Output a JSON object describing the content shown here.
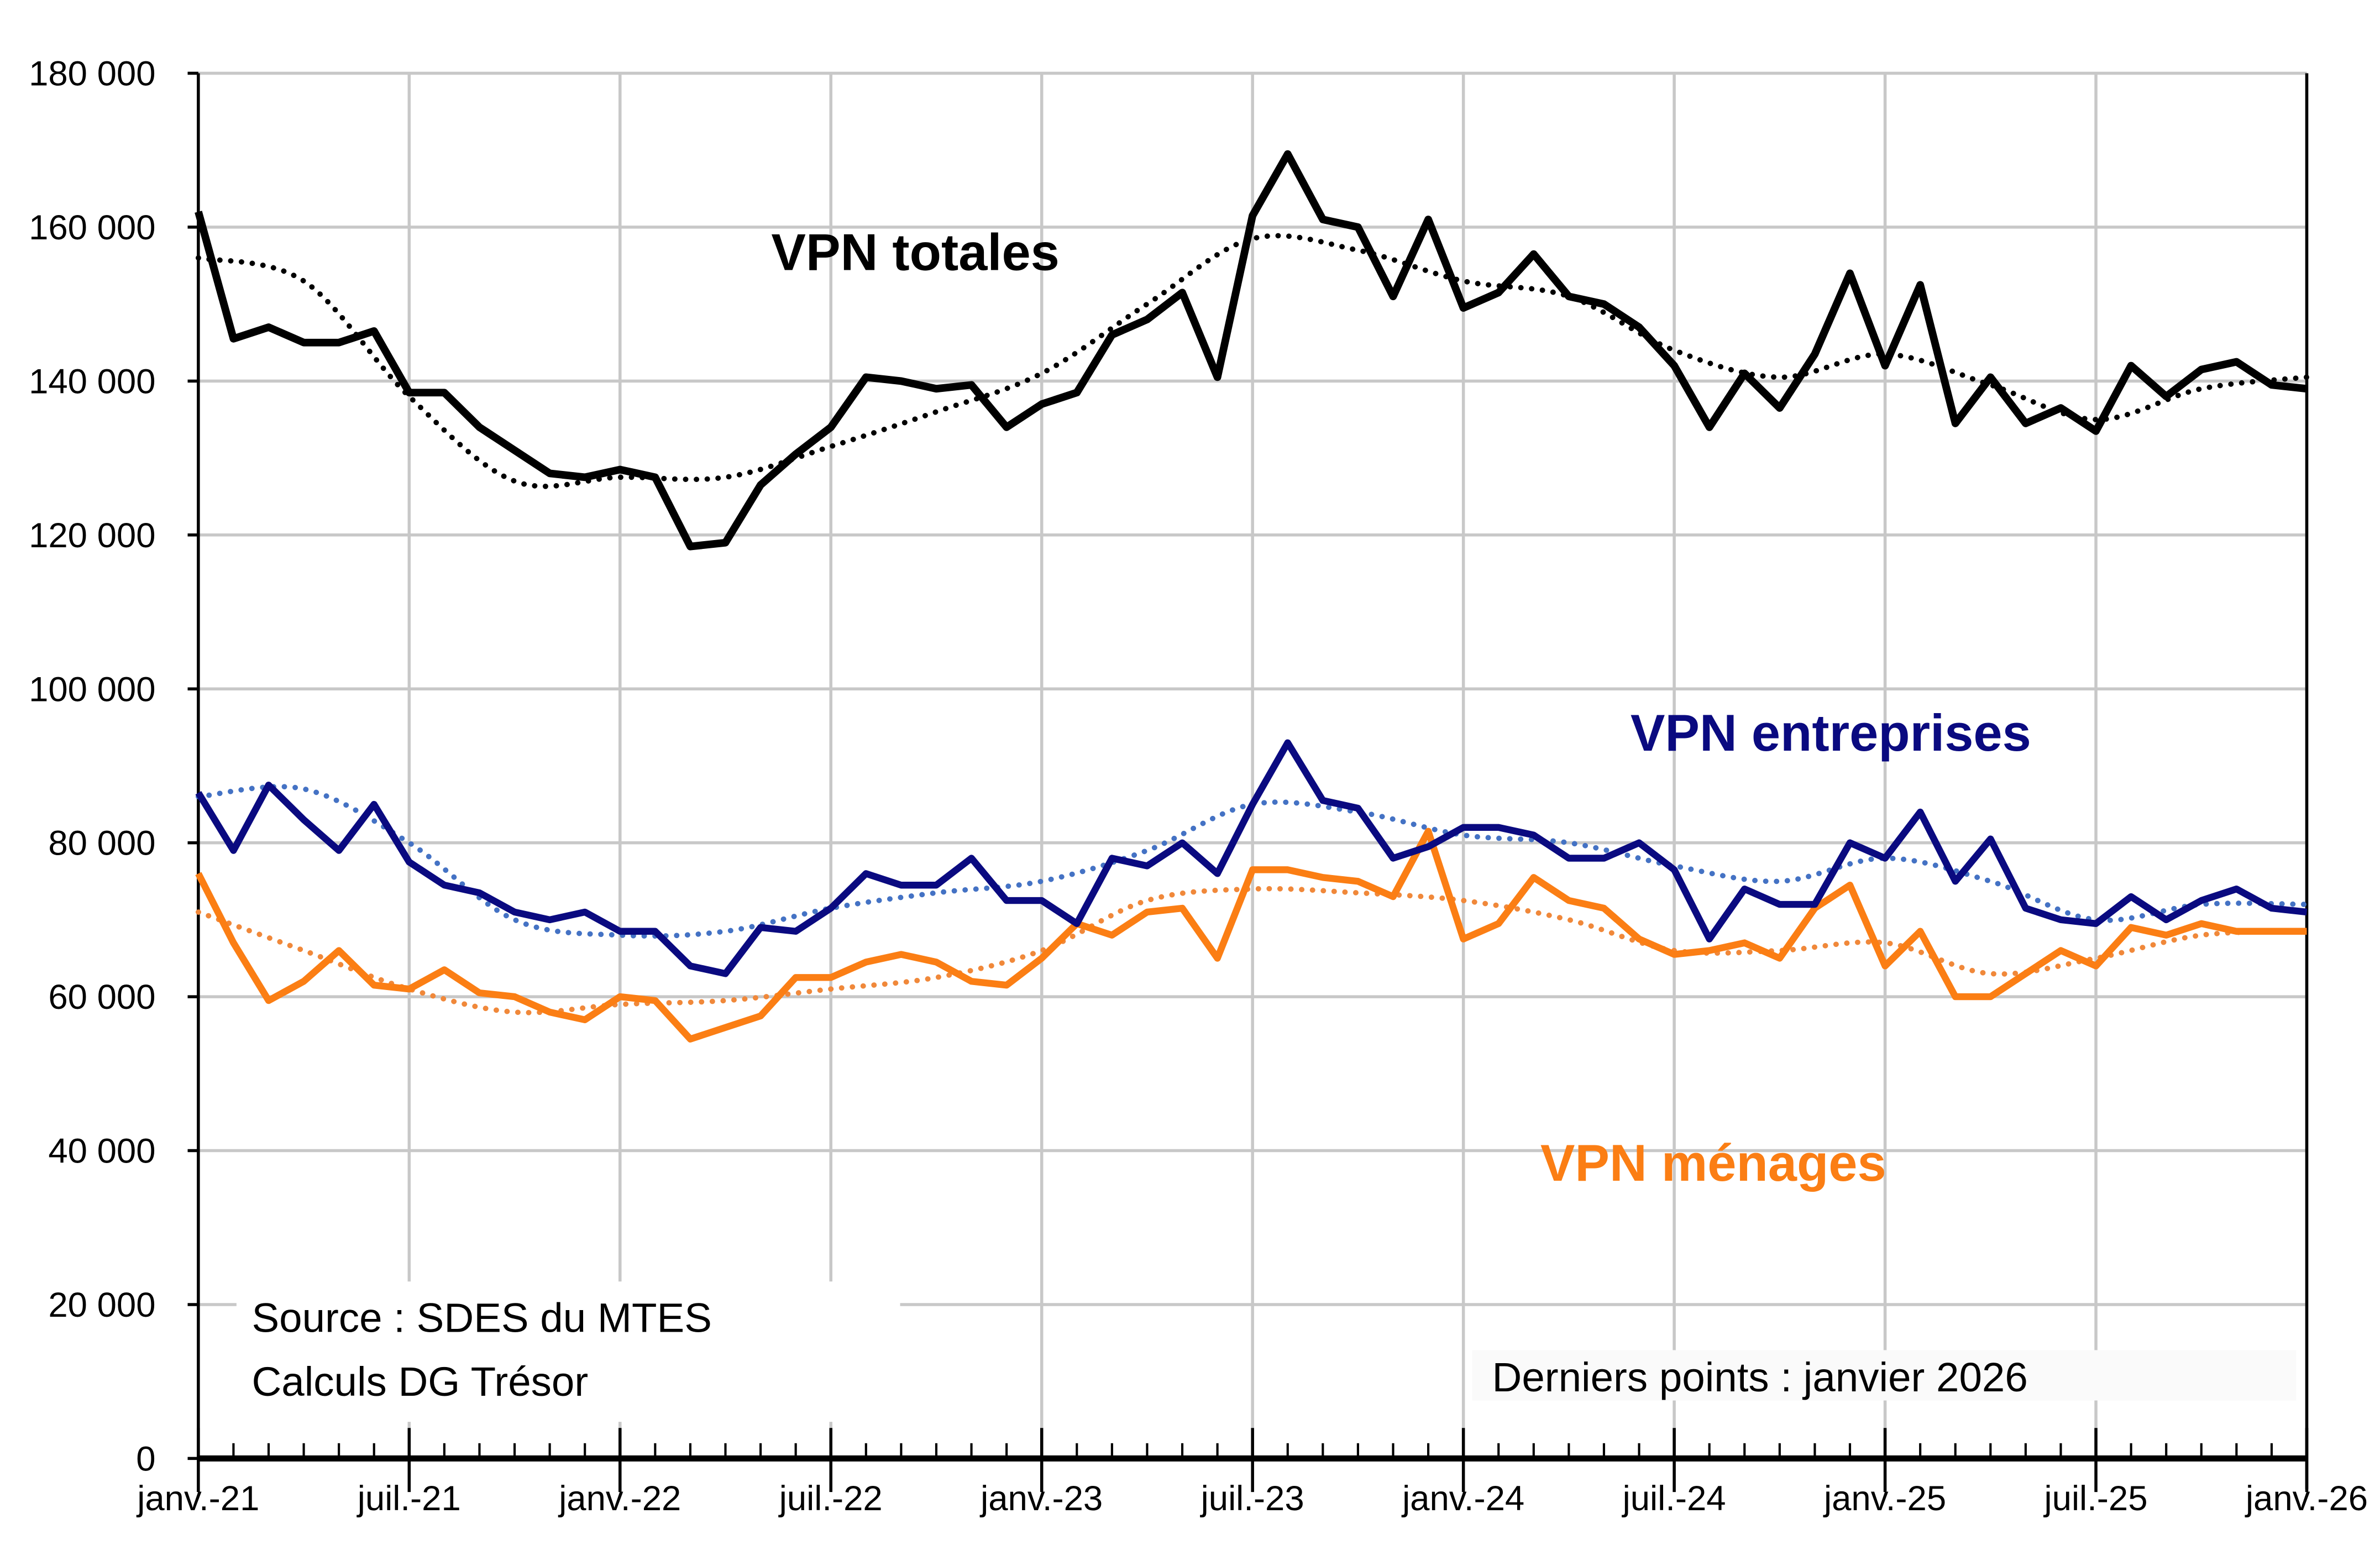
{
  "chart_data": {
    "type": "line",
    "x_start": "2021-01",
    "x_end": "2026-01",
    "x_frequency": "monthly",
    "xtick_labels": [
      "janv.-21",
      "juil.-21",
      "janv.-22",
      "juil.-22",
      "janv.-23",
      "juil.-23",
      "janv.-24",
      "juil.-24",
      "janv.-25",
      "juil.-25",
      "janv.-26"
    ],
    "ylim": [
      0,
      180000
    ],
    "yticks": [
      0,
      20000,
      40000,
      60000,
      80000,
      100000,
      120000,
      140000,
      160000,
      180000
    ],
    "ytick_labels": [
      "0",
      "20 000",
      "40 000",
      "60 000",
      "80 000",
      "100 000",
      "120 000",
      "140 000",
      "160 000",
      "180 000"
    ],
    "grid": true,
    "series": [
      {
        "name": "VPN totales",
        "color": "#000000",
        "values": [
          162000,
          145500,
          147000,
          145000,
          145000,
          146500,
          138500,
          138500,
          134000,
          131000,
          128000,
          127500,
          128500,
          127500,
          118500,
          119000,
          126500,
          130500,
          134000,
          140500,
          140000,
          139000,
          139500,
          134000,
          137000,
          138500,
          146000,
          148000,
          151500,
          140500,
          161500,
          169500,
          161000,
          160000,
          151000,
          161000,
          149500,
          151500,
          156500,
          151000,
          150000,
          147000,
          142000,
          134000,
          141000,
          136500,
          143500,
          154000,
          142000,
          152500,
          134500,
          140500,
          134500,
          136500,
          133500,
          142000,
          138000,
          141500,
          142500,
          139500,
          139000
        ],
        "trend_color": "#000000",
        "trend_quarterly": [
          156000,
          153000,
          138000,
          127000,
          127500,
          127500,
          131500,
          136000,
          141000,
          150000,
          158500,
          157000,
          153000,
          151000,
          144000,
          140500,
          143500,
          139500,
          135000,
          139000,
          140500
        ]
      },
      {
        "name": "VPN entreprises",
        "color": "#0a0a80",
        "values": [
          86500,
          79000,
          87500,
          83000,
          79000,
          85000,
          77500,
          74500,
          73500,
          71000,
          70000,
          71000,
          68500,
          68500,
          64000,
          63000,
          69000,
          68500,
          71500,
          76000,
          74500,
          74500,
          78000,
          72500,
          72500,
          69500,
          78000,
          77000,
          80000,
          76000,
          85000,
          93000,
          85500,
          84500,
          78000,
          79500,
          82000,
          82000,
          81000,
          78000,
          78000,
          80000,
          76500,
          67500,
          74000,
          72000,
          72000,
          80000,
          78000,
          84000,
          75000,
          80500,
          71500,
          70000,
          69500,
          73000,
          70000,
          72500,
          74000,
          71500,
          71000
        ],
        "trend_color": "#4472c4",
        "trend_quarterly": [
          86000,
          87000,
          80000,
          70000,
          68000,
          68500,
          71500,
          73500,
          75000,
          79000,
          85000,
          84000,
          81000,
          80000,
          77000,
          75000,
          78000,
          75000,
          70000,
          72000,
          72000
        ]
      },
      {
        "name": "VPN ménages",
        "color": "#fb7e14",
        "values": [
          76000,
          67000,
          59500,
          62000,
          66000,
          61500,
          61000,
          63500,
          60500,
          60000,
          58000,
          57000,
          60000,
          59500,
          54500,
          56000,
          57500,
          62500,
          62500,
          64500,
          65500,
          64500,
          62000,
          61500,
          65000,
          69500,
          68000,
          71000,
          71500,
          65000,
          76500,
          76500,
          75500,
          75000,
          73000,
          81500,
          67500,
          69500,
          75500,
          72500,
          71500,
          67500,
          65500,
          66000,
          67000,
          65000,
          71500,
          74500,
          64000,
          68500,
          60000,
          60000,
          63000,
          66000,
          64000,
          69000,
          68000,
          69500,
          68500,
          68500,
          68500
        ],
        "trend_color": "#f0883a",
        "trend_quarterly": [
          71000,
          66000,
          61000,
          58000,
          59000,
          59500,
          61000,
          62500,
          66000,
          72500,
          74000,
          73500,
          72500,
          70000,
          66000,
          66000,
          67000,
          63000,
          65000,
          68000,
          68500
        ]
      }
    ],
    "annotations": {
      "source_line1": "Source : SDES du MTES",
      "source_line2": "Calculs DG Trésor",
      "last_points": "Derniers points : janvier 2026"
    }
  }
}
